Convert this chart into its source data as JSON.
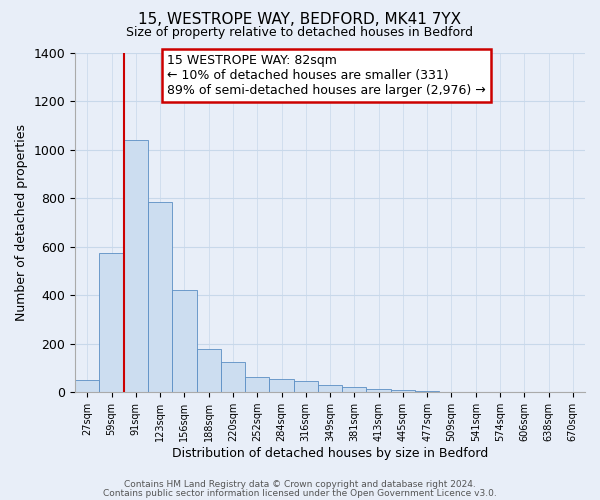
{
  "title": "15, WESTROPE WAY, BEDFORD, MK41 7YX",
  "subtitle": "Size of property relative to detached houses in Bedford",
  "xlabel": "Distribution of detached houses by size in Bedford",
  "ylabel": "Number of detached properties",
  "bar_labels": [
    "27sqm",
    "59sqm",
    "91sqm",
    "123sqm",
    "156sqm",
    "188sqm",
    "220sqm",
    "252sqm",
    "284sqm",
    "316sqm",
    "349sqm",
    "381sqm",
    "413sqm",
    "445sqm",
    "477sqm",
    "509sqm",
    "541sqm",
    "574sqm",
    "606sqm",
    "638sqm",
    "670sqm"
  ],
  "bar_values": [
    50,
    575,
    1040,
    785,
    420,
    180,
    125,
    62,
    55,
    48,
    28,
    23,
    15,
    8,
    5,
    0,
    0,
    0,
    0,
    0,
    0
  ],
  "bar_color": "#ccddf0",
  "bar_edge_color": "#5b8ec4",
  "vline_x_index": 2,
  "vline_color": "#cc0000",
  "annotation_title": "15 WESTROPE WAY: 82sqm",
  "annotation_line1": "← 10% of detached houses are smaller (331)",
  "annotation_line2": "89% of semi-detached houses are larger (2,976) →",
  "annotation_box_facecolor": "#ffffff",
  "annotation_box_edgecolor": "#cc0000",
  "ylim": [
    0,
    1400
  ],
  "yticks": [
    0,
    200,
    400,
    600,
    800,
    1000,
    1200,
    1400
  ],
  "grid_color": "#c8d8ea",
  "bg_color": "#e8eef8",
  "plot_bg_color": "#e8eef8",
  "footer1": "Contains HM Land Registry data © Crown copyright and database right 2024.",
  "footer2": "Contains public sector information licensed under the Open Government Licence v3.0."
}
